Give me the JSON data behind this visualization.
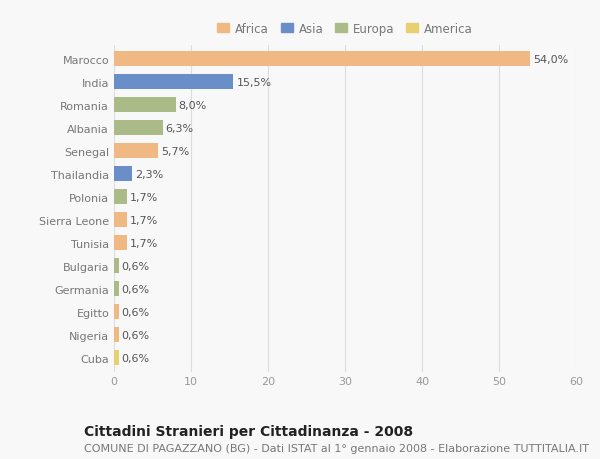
{
  "countries": [
    "Marocco",
    "India",
    "Romania",
    "Albania",
    "Senegal",
    "Thailandia",
    "Polonia",
    "Sierra Leone",
    "Tunisia",
    "Bulgaria",
    "Germania",
    "Egitto",
    "Nigeria",
    "Cuba"
  ],
  "values": [
    54.0,
    15.5,
    8.0,
    6.3,
    5.7,
    2.3,
    1.7,
    1.7,
    1.7,
    0.6,
    0.6,
    0.6,
    0.6,
    0.6
  ],
  "labels": [
    "54,0%",
    "15,5%",
    "8,0%",
    "6,3%",
    "5,7%",
    "2,3%",
    "1,7%",
    "1,7%",
    "1,7%",
    "0,6%",
    "0,6%",
    "0,6%",
    "0,6%",
    "0,6%"
  ],
  "colors": [
    "#F0B984",
    "#6A8FC8",
    "#AABB88",
    "#AABB88",
    "#F0B984",
    "#6A8FC8",
    "#AABB88",
    "#F0B984",
    "#F0B984",
    "#AABB88",
    "#AABB88",
    "#F0B984",
    "#F0B984",
    "#E8D070"
  ],
  "continents": [
    "Africa",
    "Asia",
    "Europa",
    "Europa",
    "Africa",
    "Asia",
    "Europa",
    "Africa",
    "Africa",
    "Europa",
    "Europa",
    "Africa",
    "Africa",
    "America"
  ],
  "legend_labels": [
    "Africa",
    "Asia",
    "Europa",
    "America"
  ],
  "legend_colors": [
    "#F0B984",
    "#6A8FC8",
    "#AABB88",
    "#E8D070"
  ],
  "xlim": [
    0,
    60
  ],
  "xticks": [
    0,
    10,
    20,
    30,
    40,
    50,
    60
  ],
  "title": "Cittadini Stranieri per Cittadinanza - 2008",
  "subtitle": "COMUNE DI PAGAZZANO (BG) - Dati ISTAT al 1° gennaio 2008 - Elaborazione TUTTITALIA.IT",
  "background_color": "#f8f8f8",
  "grid_color": "#dddddd",
  "bar_height": 0.65,
  "title_fontsize": 10,
  "subtitle_fontsize": 8,
  "tick_fontsize": 8,
  "label_fontsize": 8,
  "legend_fontsize": 8.5
}
